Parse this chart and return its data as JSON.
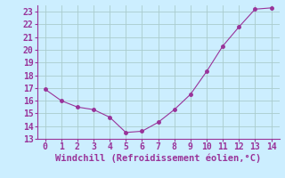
{
  "x": [
    0,
    1,
    2,
    3,
    4,
    5,
    6,
    7,
    8,
    9,
    10,
    11,
    12,
    13,
    14
  ],
  "y": [
    16.9,
    16.0,
    15.5,
    15.3,
    14.7,
    13.5,
    13.6,
    14.3,
    15.3,
    16.5,
    18.3,
    20.3,
    21.8,
    23.2,
    23.3
  ],
  "line_color": "#993399",
  "marker": "o",
  "marker_size": 2.5,
  "background_color": "#cceeff",
  "grid_color": "#aacccc",
  "xlabel": "Windchill (Refroidissement éolien,°C)",
  "xlabel_color": "#993399",
  "xlabel_fontsize": 7.5,
  "tick_color": "#993399",
  "tick_fontsize": 7,
  "ylim": [
    13,
    23.5
  ],
  "xlim": [
    -0.5,
    14.5
  ],
  "yticks": [
    13,
    14,
    15,
    16,
    17,
    18,
    19,
    20,
    21,
    22,
    23
  ],
  "xticks": [
    0,
    1,
    2,
    3,
    4,
    5,
    6,
    7,
    8,
    9,
    10,
    11,
    12,
    13,
    14
  ],
  "spine_color": "#993399"
}
